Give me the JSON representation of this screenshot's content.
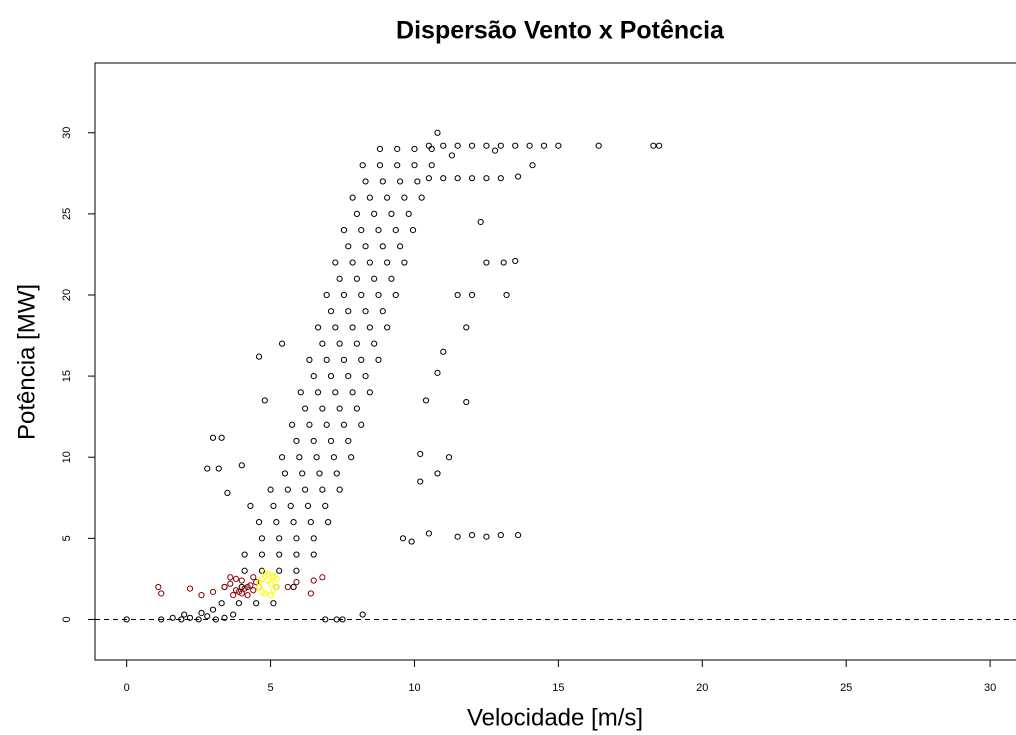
{
  "chart_data": {
    "type": "scatter",
    "title": "Dispersão Vento x Potência",
    "xlabel": "Velocidade [m/s]",
    "ylabel": "Potência [MW]",
    "xlim": [
      -1.1,
      30.9
    ],
    "ylim": [
      -2.5,
      34.3
    ],
    "xticks": [
      0,
      5,
      10,
      15,
      20,
      25,
      30
    ],
    "yticks": [
      0,
      5,
      10,
      15,
      20,
      25,
      30
    ],
    "hline": 0,
    "series": [
      {
        "color": "#000000",
        "x": [
          0,
          1.2,
          1.6,
          1.9,
          2.2,
          2.5,
          2.8,
          3.1,
          3.4,
          3.7,
          2.0,
          2.6,
          3.0,
          6.9,
          7.3,
          7.5,
          8.2,
          3.4,
          4.0,
          4.6,
          5.2,
          5.8,
          4.1,
          4.7,
          5.3,
          5.9,
          6.5,
          4.6,
          5.2,
          5.8,
          6.4,
          7.0,
          5.0,
          5.6,
          6.2,
          6.8,
          7.4,
          5.4,
          6.0,
          6.6,
          7.2,
          7.8,
          5.75,
          6.35,
          6.95,
          7.55,
          8.15,
          6.05,
          6.65,
          7.25,
          7.85,
          8.45,
          6.35,
          6.95,
          7.55,
          8.15,
          8.75,
          6.65,
          7.25,
          7.85,
          8.45,
          9.05,
          6.95,
          7.55,
          8.15,
          8.75,
          9.35,
          7.25,
          7.85,
          8.45,
          9.05,
          9.65,
          7.55,
          8.15,
          8.75,
          9.35,
          9.95,
          7.85,
          8.45,
          9.05,
          9.65,
          10.25,
          8.2,
          8.8,
          9.4,
          10.0,
          10.6,
          3.3,
          3.9,
          4.5,
          5.1,
          4.1,
          4.7,
          5.3,
          5.9,
          4.7,
          5.3,
          5.9,
          6.5,
          5.1,
          5.7,
          6.3,
          6.9,
          5.5,
          6.1,
          6.7,
          7.3,
          5.9,
          6.5,
          7.1,
          7.7,
          6.2,
          6.8,
          7.4,
          8.0,
          6.5,
          7.1,
          7.7,
          8.3,
          6.8,
          7.4,
          8.0,
          8.6,
          7.1,
          7.7,
          8.3,
          8.9,
          7.4,
          8.0,
          8.6,
          9.2,
          7.7,
          8.3,
          8.9,
          9.5,
          8.0,
          8.6,
          9.2,
          9.8,
          8.3,
          8.9,
          9.5,
          10.1,
          8.8,
          9.4,
          10.0,
          10.6,
          10.5,
          11,
          11.5,
          12,
          12.5,
          13,
          13.5,
          14,
          14.5,
          15,
          16.4,
          18.3,
          18.5,
          10.5,
          11,
          11.5,
          12,
          12.5,
          13,
          13.6,
          10.8,
          14.1,
          11.3,
          12.8,
          12.3,
          12.5,
          13.1,
          13.5,
          11.5,
          12,
          13.2,
          11.8,
          11,
          10.8,
          11.8,
          10.4,
          10.2,
          11.2,
          10.8,
          10.2,
          9.6,
          9.9,
          10.5,
          11.5,
          12,
          12.5,
          13,
          13.6,
          3,
          3.3,
          2.8,
          3.2,
          4,
          4.3,
          3.5,
          4.6,
          4.8,
          5.4
        ],
        "values": [
          0,
          0,
          0.1,
          0,
          0.1,
          0,
          0.2,
          0,
          0.1,
          0.3,
          0.3,
          0.4,
          0.6,
          0,
          0,
          0,
          0.3,
          2,
          2,
          2,
          2,
          2,
          4,
          4,
          4,
          4,
          4,
          6,
          6,
          6,
          6,
          6,
          8,
          8,
          8,
          8,
          8,
          10,
          10,
          10,
          10,
          10,
          12,
          12,
          12,
          12,
          12,
          14,
          14,
          14,
          14,
          14,
          16,
          16,
          16,
          16,
          16,
          18,
          18,
          18,
          18,
          18,
          20,
          20,
          20,
          20,
          20,
          22,
          22,
          22,
          22,
          22,
          24,
          24,
          24,
          24,
          24,
          26,
          26,
          26,
          26,
          26,
          28,
          28,
          28,
          28,
          28,
          1,
          1,
          1,
          1,
          3,
          3,
          3,
          3,
          5,
          5,
          5,
          5,
          7,
          7,
          7,
          7,
          9,
          9,
          9,
          9,
          11,
          11,
          11,
          11,
          13,
          13,
          13,
          13,
          15,
          15,
          15,
          15,
          17,
          17,
          17,
          17,
          19,
          19,
          19,
          19,
          21,
          21,
          21,
          21,
          23,
          23,
          23,
          23,
          25,
          25,
          25,
          25,
          27,
          27,
          27,
          27,
          29,
          29,
          29,
          29,
          29.2,
          29.2,
          29.2,
          29.2,
          29.2,
          29.2,
          29.2,
          29.2,
          29.2,
          29.2,
          29.2,
          29.2,
          29.2,
          27.2,
          27.2,
          27.2,
          27.2,
          27.2,
          27.2,
          27.3,
          30,
          28,
          28.6,
          28.9,
          24.5,
          22,
          22,
          22.1,
          20,
          20,
          20,
          18,
          16.5,
          15.2,
          13.4,
          13.5,
          10.2,
          10,
          9,
          8.5,
          5,
          4.8,
          5.3,
          5.1,
          5.2,
          5.1,
          5.2,
          5.2,
          11.2,
          11.2,
          9.3,
          9.3,
          9.5,
          7,
          7.8,
          16.2,
          13.5,
          17
        ]
      },
      {
        "color": "#8b0000",
        "x": [
          1.1,
          1.2,
          2.2,
          2.6,
          3.0,
          3.4,
          3.6,
          3.8,
          4.0,
          4.2,
          4.4,
          3.7,
          3.9,
          4.1,
          4.3,
          4.5,
          3.6,
          3.8,
          4.0,
          4.2,
          4.4,
          5.6,
          5.9,
          6.5,
          6.8,
          6.4
        ],
        "values": [
          2.0,
          1.6,
          1.9,
          1.5,
          1.7,
          2.0,
          2.2,
          1.8,
          2.4,
          2.0,
          2.6,
          1.5,
          1.7,
          1.9,
          2.1,
          2.3,
          2.6,
          2.5,
          1.6,
          1.5,
          1.8,
          2.0,
          2.3,
          2.4,
          2.6,
          1.6
        ]
      },
      {
        "color": "#ffff00",
        "x": [
          4.6,
          4.7,
          4.8,
          4.9,
          5.0,
          5.1,
          5.2,
          4.7,
          4.9,
          5.1,
          4.8,
          5.0,
          5.2,
          4.6,
          5.1
        ],
        "values": [
          2.0,
          2.5,
          1.6,
          2.8,
          2.2,
          1.8,
          2.5,
          1.7,
          2.4,
          2.6,
          2.9,
          1.5,
          2.0,
          2.3,
          2.7
        ]
      }
    ]
  }
}
